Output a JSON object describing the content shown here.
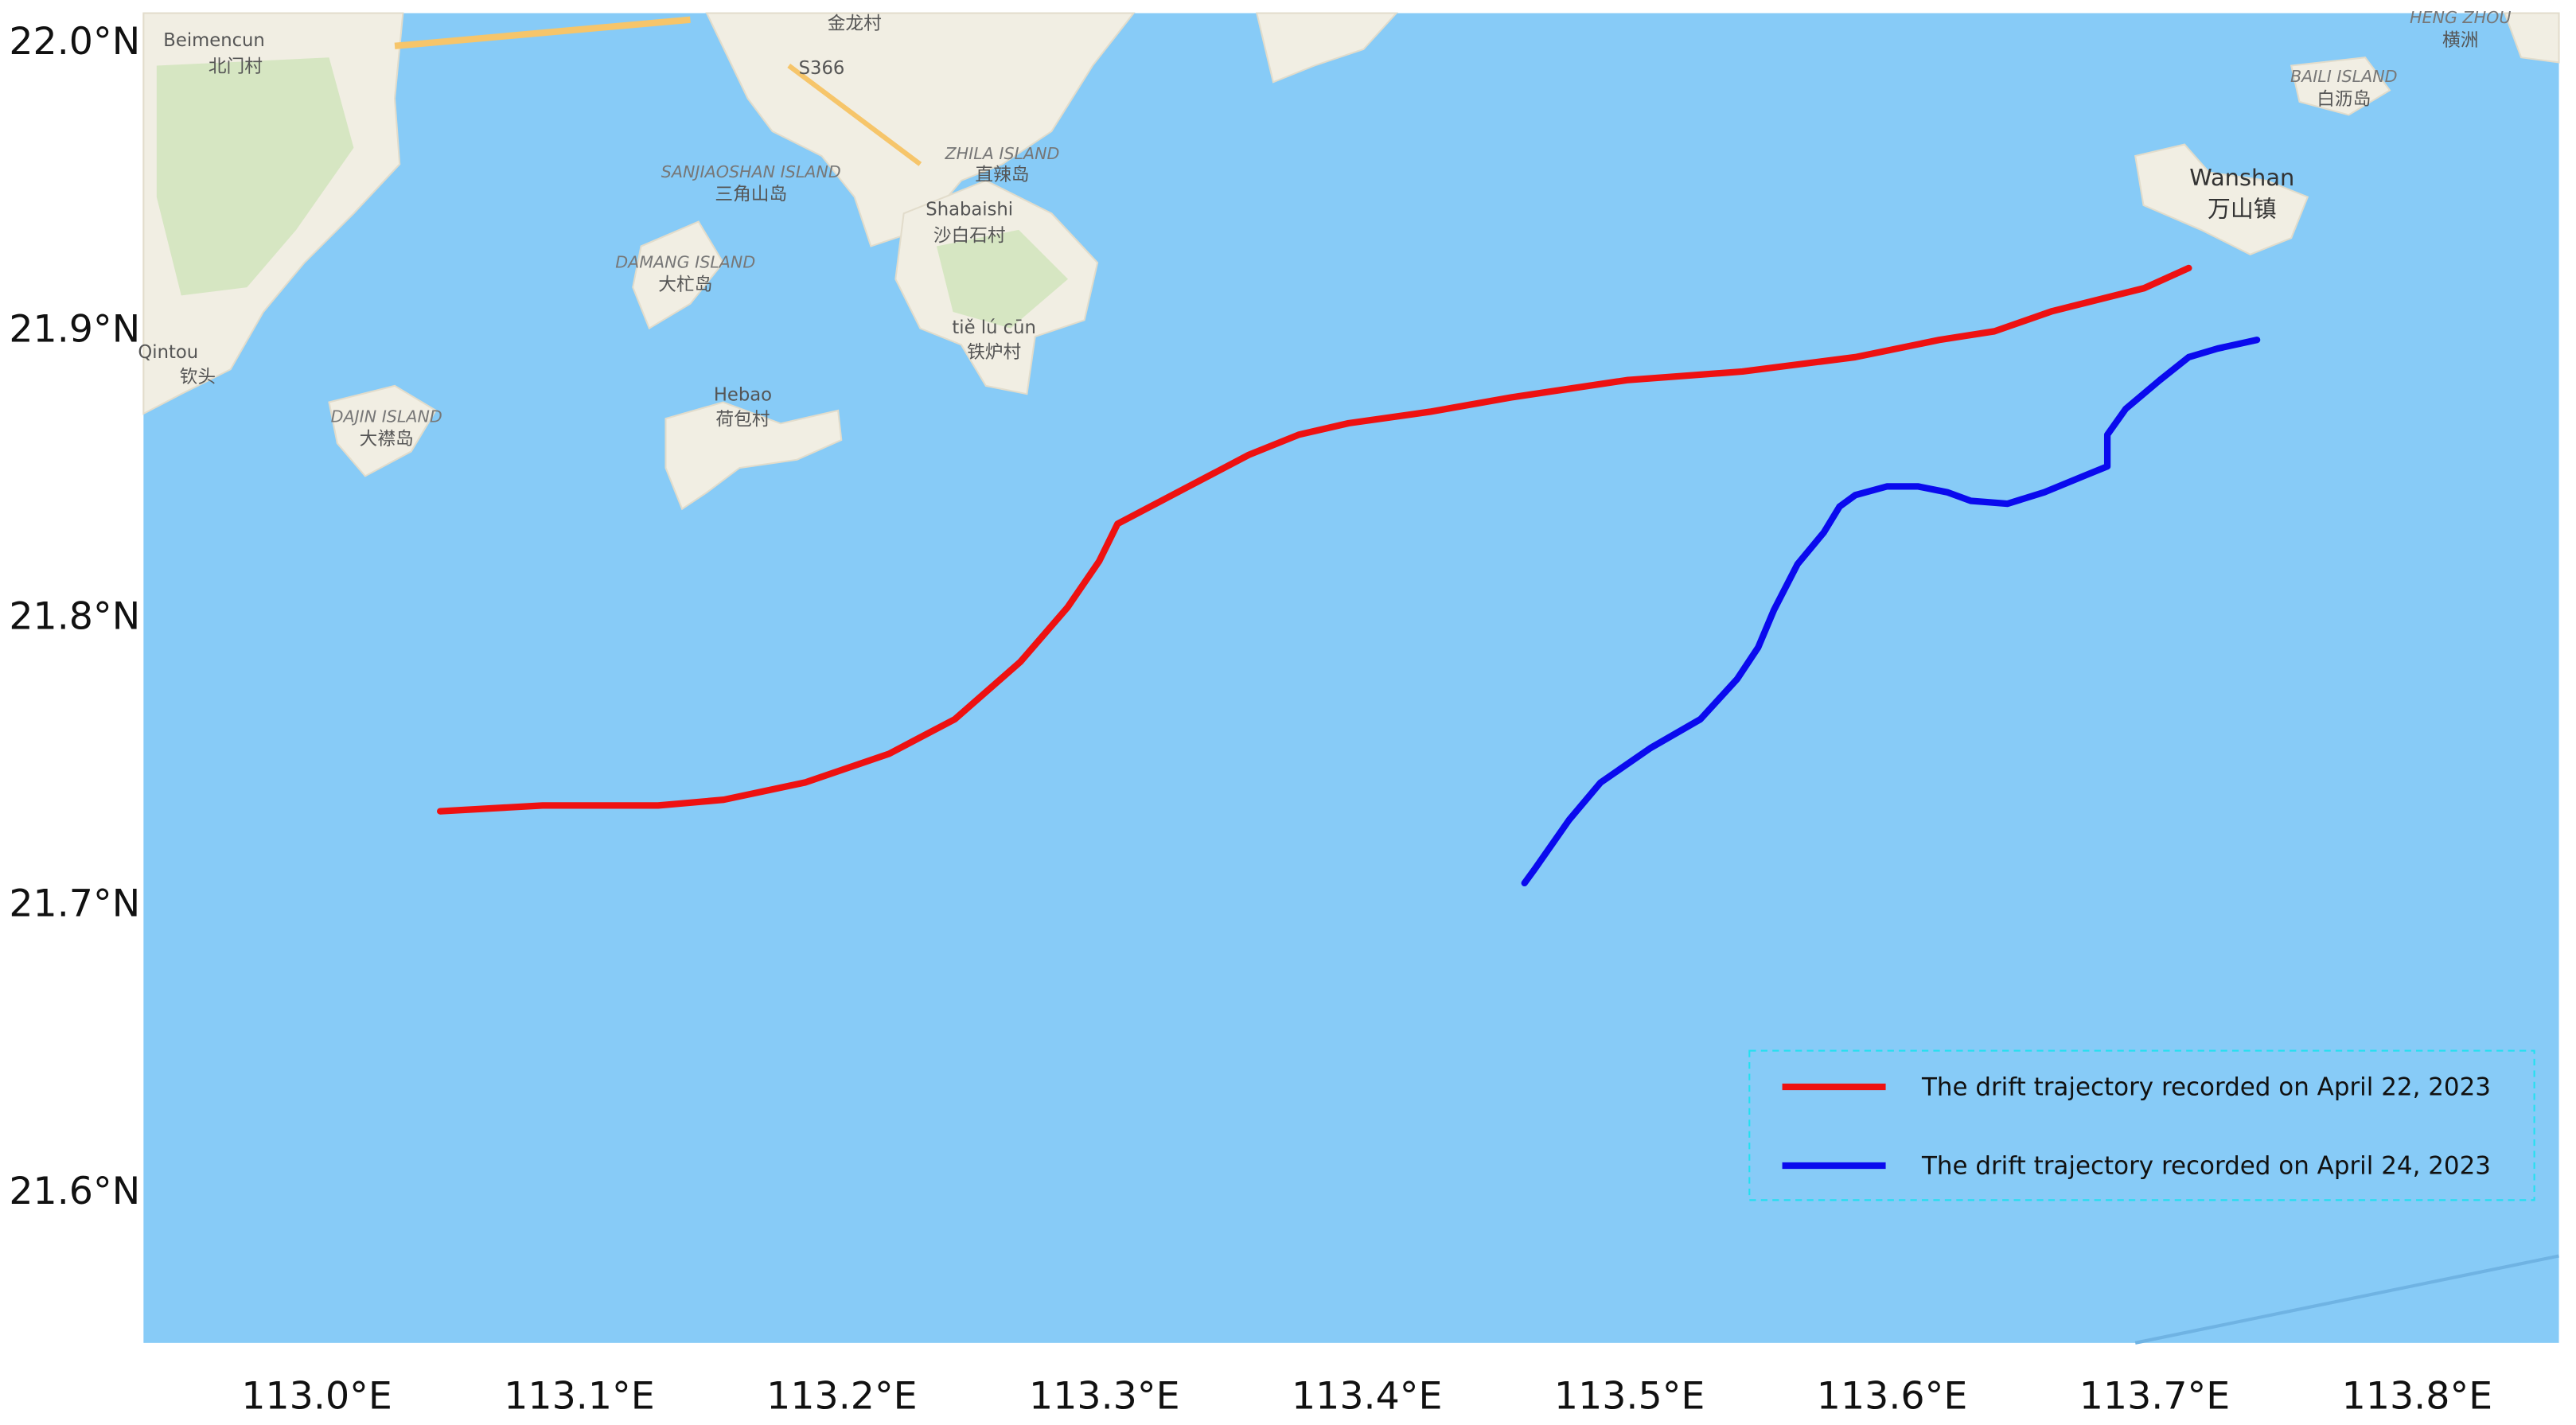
{
  "chart_data": {
    "type": "line",
    "xlim": [
      112.934,
      113.854
    ],
    "ylim": [
      21.547,
      22.0097
    ],
    "xticks": [
      {
        "value": 113.0,
        "label": "113.0°E"
      },
      {
        "value": 113.1,
        "label": "113.1°E"
      },
      {
        "value": 113.2,
        "label": "113.2°E"
      },
      {
        "value": 113.3,
        "label": "113.3°E"
      },
      {
        "value": 113.4,
        "label": "113.4°E"
      },
      {
        "value": 113.5,
        "label": "113.5°E"
      },
      {
        "value": 113.6,
        "label": "113.6°E"
      },
      {
        "value": 113.7,
        "label": "113.7°E"
      },
      {
        "value": 113.8,
        "label": "113.8°E"
      }
    ],
    "yticks": [
      {
        "value": 21.6,
        "label": "21.6°N"
      },
      {
        "value": 21.7,
        "label": "21.7°N"
      },
      {
        "value": 21.8,
        "label": "21.8°N"
      },
      {
        "value": 21.9,
        "label": "21.9°N"
      },
      {
        "value": 22.0,
        "label": "22.0°N"
      }
    ],
    "grid": true,
    "legend": "lower right",
    "series": [
      {
        "name": "The drift trajectory recorded on April 22, 2023",
        "color": "#ee1111",
        "x": [
          113.047,
          113.086,
          113.13,
          113.155,
          113.186,
          113.218,
          113.243,
          113.268,
          113.286,
          113.298,
          113.305,
          113.33,
          113.355,
          113.374,
          113.393,
          113.424,
          113.455,
          113.499,
          113.543,
          113.586,
          113.618,
          113.639,
          113.661,
          113.696,
          113.713
        ],
        "values": [
          21.732,
          21.734,
          21.734,
          21.736,
          21.742,
          21.752,
          21.764,
          21.784,
          21.803,
          21.819,
          21.832,
          21.844,
          21.856,
          21.863,
          21.867,
          21.871,
          21.876,
          21.882,
          21.885,
          21.89,
          21.896,
          21.899,
          21.906,
          21.914,
          21.921
        ]
      },
      {
        "name": "The drift trajectory recorded on April 24, 2023",
        "color": "#0a0aee",
        "x": [
          113.46,
          113.464,
          113.477,
          113.489,
          113.508,
          113.527,
          113.541,
          113.549,
          113.555,
          113.564,
          113.574,
          113.58,
          113.586,
          113.598,
          113.61,
          113.621,
          113.63,
          113.644,
          113.658,
          113.674,
          113.682,
          113.682,
          113.689,
          113.702,
          113.713,
          113.724,
          113.739
        ],
        "values": [
          21.707,
          21.712,
          21.729,
          21.742,
          21.754,
          21.764,
          21.778,
          21.789,
          21.802,
          21.818,
          21.829,
          21.838,
          21.842,
          21.845,
          21.845,
          21.843,
          21.84,
          21.839,
          21.843,
          21.849,
          21.852,
          21.863,
          21.872,
          21.882,
          21.89,
          21.893,
          21.896
        ]
      }
    ],
    "map_labels": [
      "Beimencun",
      "北门村",
      "金龙村",
      "S366",
      "SANJIAOSHAN ISLAND",
      "三角山岛",
      "ZHILA ISLAND",
      "直辣岛",
      "Shabaishi",
      "沙白石村",
      "DAMANG ISLAND",
      "大杧岛",
      "tiě lú cūn",
      "铁炉村",
      "Qintou",
      "钦头",
      "DAJIN ISLAND",
      "大襟岛",
      "Hebao",
      "荷包村",
      "Wanshan",
      "万山镇",
      "BAILI ISLAND",
      "白沥岛",
      "HENG ZHOU",
      "横洲"
    ]
  }
}
